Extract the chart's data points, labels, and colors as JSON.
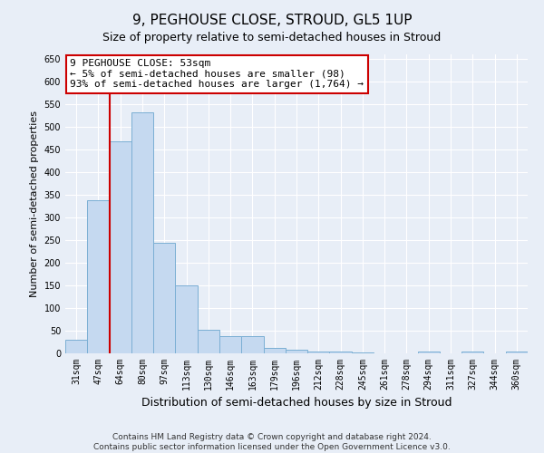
{
  "title": "9, PEGHOUSE CLOSE, STROUD, GL5 1UP",
  "subtitle": "Size of property relative to semi-detached houses in Stroud",
  "xlabel": "Distribution of semi-detached houses by size in Stroud",
  "ylabel": "Number of semi-detached properties",
  "categories": [
    "31sqm",
    "47sqm",
    "64sqm",
    "80sqm",
    "97sqm",
    "113sqm",
    "130sqm",
    "146sqm",
    "163sqm",
    "179sqm",
    "196sqm",
    "212sqm",
    "228sqm",
    "245sqm",
    "261sqm",
    "278sqm",
    "294sqm",
    "311sqm",
    "327sqm",
    "344sqm",
    "360sqm"
  ],
  "values": [
    30,
    338,
    468,
    532,
    245,
    150,
    52,
    38,
    38,
    12,
    8,
    5,
    4,
    3,
    0,
    0,
    5,
    0,
    5,
    0,
    5
  ],
  "bar_color": "#c5d9f0",
  "bar_edge_color": "#7bafd4",
  "vline_x": 1.5,
  "vline_color": "#cc0000",
  "annotation_text": "9 PEGHOUSE CLOSE: 53sqm\n← 5% of semi-detached houses are smaller (98)\n93% of semi-detached houses are larger (1,764) →",
  "annotation_box_color": "#ffffff",
  "annotation_box_edge_color": "#cc0000",
  "ylim": [
    0,
    660
  ],
  "yticks": [
    0,
    50,
    100,
    150,
    200,
    250,
    300,
    350,
    400,
    450,
    500,
    550,
    600,
    650
  ],
  "footer_line1": "Contains HM Land Registry data © Crown copyright and database right 2024.",
  "footer_line2": "Contains public sector information licensed under the Open Government Licence v3.0.",
  "bg_color": "#e8eef7",
  "plot_bg_color": "#e8eef7",
  "grid_color": "#ffffff",
  "title_fontsize": 11,
  "subtitle_fontsize": 9,
  "ylabel_fontsize": 8,
  "xlabel_fontsize": 9,
  "tick_fontsize": 7,
  "annotation_fontsize": 8
}
